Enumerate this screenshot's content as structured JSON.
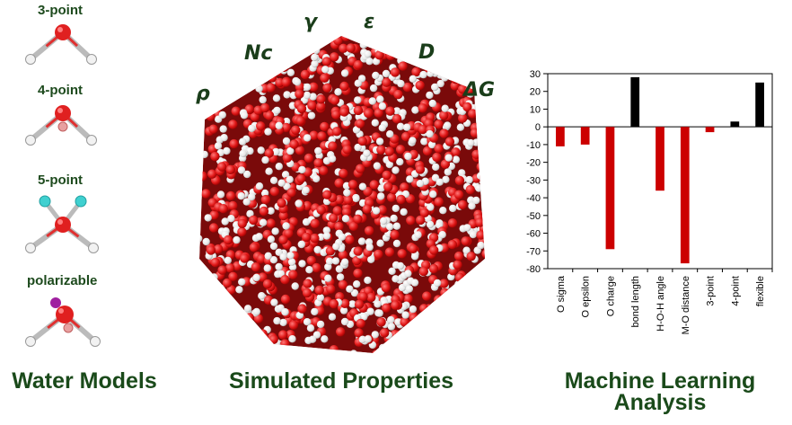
{
  "water_models": {
    "title": "Water Models",
    "models": [
      {
        "label": "3-point"
      },
      {
        "label": "4-point"
      },
      {
        "label": "5-point"
      },
      {
        "label": "polarizable"
      }
    ]
  },
  "simulated": {
    "title": "Simulated Properties",
    "properties": [
      "ρ",
      "Nc",
      "γ",
      "ε",
      "D",
      "ΔG"
    ]
  },
  "ml": {
    "title_line1": "Machine Learning",
    "title_line2": "Analysis"
  },
  "colors": {
    "title_green": "#1a4a1a",
    "negative_bar": "#cc0000",
    "positive_bar": "#000000",
    "oxygen": "#e02020",
    "hydrogen": "#f4f4f4",
    "virtual_site": "#40d0d0",
    "drude": "#a020a0"
  },
  "chart_data": {
    "type": "bar",
    "categories": [
      "O sigma",
      "O epsilon",
      "O charge",
      "bond length",
      "H-O-H angle",
      "M-O distance",
      "3-point",
      "4-point",
      "flexible"
    ],
    "values": [
      -11,
      -10,
      -69,
      28,
      -36,
      -77,
      -3,
      3,
      25
    ],
    "colors": [
      "#cc0000",
      "#cc0000",
      "#cc0000",
      "#000000",
      "#cc0000",
      "#cc0000",
      "#cc0000",
      "#000000",
      "#000000"
    ],
    "ylim": [
      -80,
      30
    ],
    "yticks": [
      30,
      20,
      10,
      0,
      -10,
      -20,
      -30,
      -40,
      -50,
      -60,
      -70,
      -80
    ],
    "grid": false
  }
}
